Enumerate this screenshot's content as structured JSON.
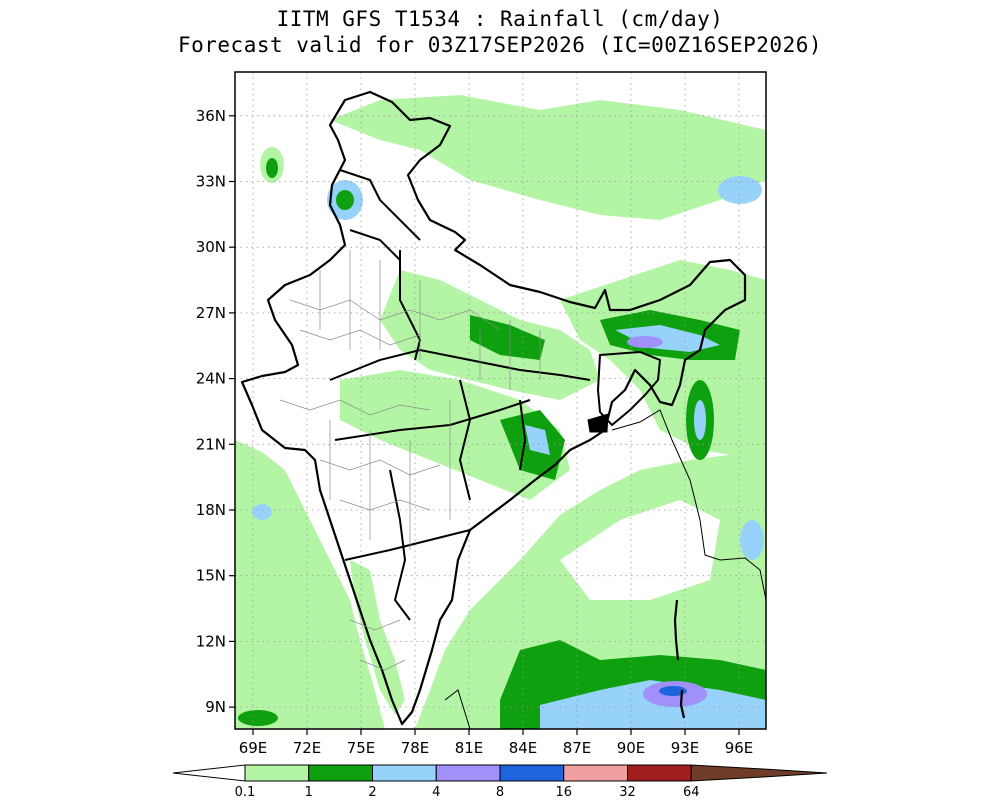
{
  "title": {
    "line1": "IITM GFS T1534 : Rainfall (cm/day)",
    "line2": "Forecast valid for 03Z17SEP2026 (IC=00Z16SEP2026)"
  },
  "map": {
    "lon_range": [
      68,
      97.5
    ],
    "lat_range": [
      8,
      38
    ],
    "lat_ticks": [
      {
        "value": 9,
        "label": "9N"
      },
      {
        "value": 12,
        "label": "12N"
      },
      {
        "value": 15,
        "label": "15N"
      },
      {
        "value": 18,
        "label": "18N"
      },
      {
        "value": 21,
        "label": "21N"
      },
      {
        "value": 24,
        "label": "24N"
      },
      {
        "value": 27,
        "label": "27N"
      },
      {
        "value": 30,
        "label": "30N"
      },
      {
        "value": 33,
        "label": "33N"
      },
      {
        "value": 36,
        "label": "36N"
      }
    ],
    "lon_ticks": [
      {
        "value": 69,
        "label": "69E"
      },
      {
        "value": 72,
        "label": "72E"
      },
      {
        "value": 75,
        "label": "75E"
      },
      {
        "value": 78,
        "label": "78E"
      },
      {
        "value": 81,
        "label": "81E"
      },
      {
        "value": 84,
        "label": "84E"
      },
      {
        "value": 87,
        "label": "87E"
      },
      {
        "value": 90,
        "label": "90E"
      },
      {
        "value": 93,
        "label": "93E"
      },
      {
        "value": 96,
        "label": "96E"
      }
    ],
    "grid": "dotted"
  },
  "colorbar": {
    "labels": [
      "0.1",
      "1",
      "2",
      "4",
      "8",
      "16",
      "32",
      "64"
    ],
    "colors": [
      "#b4f5a5",
      "#0ea00e",
      "#96d2fa",
      "#a090fa",
      "#1e64dc",
      "#f0a0a0",
      "#a01e1e",
      "#6e3c28"
    ],
    "under_color": "#ffffff"
  },
  "colors": {
    "light_green": "#b4f5a5",
    "green": "#0ea00e",
    "light_blue": "#96d2fa",
    "lavender": "#a090fa",
    "blue": "#1e64dc"
  }
}
